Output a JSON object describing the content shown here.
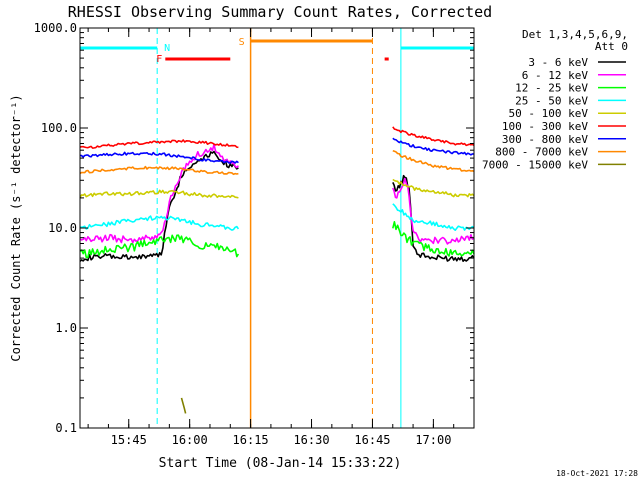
{
  "chart_data": {
    "type": "line",
    "title": "RHESSI Observing Summary Count Rates, Corrected",
    "xlabel": "Start Time (08-Jan-14 15:33:22)",
    "ylabel": "Corrected Count Rate (s⁻¹ detector⁻¹)",
    "y_scale": "log",
    "ylim": [
      0.1,
      1000
    ],
    "xlim": [
      "15:33",
      "17:10"
    ],
    "x_ticks": [
      "15:45",
      "16:00",
      "16:15",
      "16:30",
      "16:45",
      "17:00"
    ],
    "y_ticks": [
      "0.1",
      "1.0",
      "10.0",
      "100.0",
      "1000.0"
    ],
    "legend_header": [
      "Det 1,3,4,5,6,9,",
      "Att 0"
    ],
    "legend_placement": "right",
    "timestamp": "18-Oct-2021 17:28",
    "series": [
      {
        "name": "3 - 6 keV",
        "color": "#000000",
        "segments": [
          [
            [
              "15:33",
              5.0
            ],
            [
              "15:40",
              5.2
            ],
            [
              "15:46",
              5.0
            ],
            [
              "15:50",
              5.3
            ],
            [
              "15:53",
              5.5
            ],
            [
              "15:55",
              16
            ],
            [
              "15:58",
              34
            ],
            [
              "16:02",
              48
            ],
            [
              "16:06",
              58
            ],
            [
              "16:08",
              47
            ],
            [
              "16:10",
              42
            ],
            [
              "16:12",
              40
            ]
          ],
          [
            [
              "16:50",
              27
            ],
            [
              "16:51",
              24
            ],
            [
              "16:52",
              28
            ],
            [
              "16:53",
              33
            ],
            [
              "16:54",
              26
            ],
            [
              "16:55",
              7
            ],
            [
              "16:56",
              5.5
            ],
            [
              "17:00",
              5.0
            ],
            [
              "17:05",
              5.0
            ],
            [
              "17:10",
              5.0
            ]
          ]
        ]
      },
      {
        "name": "6 - 12 keV",
        "color": "#ff00ff",
        "segments": [
          [
            [
              "15:33",
              7.5
            ],
            [
              "15:40",
              8.0
            ],
            [
              "15:46",
              7.5
            ],
            [
              "15:50",
              8.0
            ],
            [
              "15:53",
              8.5
            ],
            [
              "15:55",
              18
            ],
            [
              "15:58",
              36
            ],
            [
              "16:02",
              55
            ],
            [
              "16:06",
              65
            ],
            [
              "16:08",
              50
            ],
            [
              "16:10",
              45
            ],
            [
              "16:12",
              42
            ]
          ],
          [
            [
              "16:50",
              26
            ],
            [
              "16:51",
              20
            ],
            [
              "16:52",
              24
            ],
            [
              "16:53",
              30
            ],
            [
              "16:54",
              22
            ],
            [
              "16:55",
              9
            ],
            [
              "16:56",
              8.0
            ],
            [
              "17:00",
              7.5
            ],
            [
              "17:05",
              7.5
            ],
            [
              "17:10",
              8.0
            ]
          ]
        ]
      },
      {
        "name": "12 - 25 keV",
        "color": "#00ff00",
        "segments": [
          [
            [
              "15:33",
              5.5
            ],
            [
              "15:40",
              6.0
            ],
            [
              "15:46",
              6.5
            ],
            [
              "15:50",
              7.0
            ],
            [
              "15:53",
              7.5
            ],
            [
              "15:58",
              8.0
            ],
            [
              "16:02",
              7.0
            ],
            [
              "16:06",
              6.5
            ],
            [
              "16:10",
              6.0
            ],
            [
              "16:12",
              5.5
            ]
          ],
          [
            [
              "16:50",
              11
            ],
            [
              "16:52",
              9
            ],
            [
              "16:55",
              7.0
            ],
            [
              "17:00",
              6.0
            ],
            [
              "17:05",
              5.5
            ],
            [
              "17:10",
              5.5
            ]
          ]
        ]
      },
      {
        "name": "25 - 50 keV",
        "color": "#00ffff",
        "segments": [
          [
            [
              "15:33",
              10
            ],
            [
              "15:40",
              11
            ],
            [
              "15:46",
              12
            ],
            [
              "15:50",
              12.5
            ],
            [
              "15:53",
              13
            ],
            [
              "15:58",
              12
            ],
            [
              "16:02",
              11
            ],
            [
              "16:06",
              10.5
            ],
            [
              "16:10",
              10
            ],
            [
              "16:12",
              9.8
            ]
          ],
          [
            [
              "16:50",
              17
            ],
            [
              "16:52",
              15
            ],
            [
              "16:55",
              12
            ],
            [
              "17:00",
              11
            ],
            [
              "17:05",
              10
            ],
            [
              "17:10",
              10
            ]
          ]
        ]
      },
      {
        "name": "50 - 100 keV",
        "color": "#cccc00",
        "segments": [
          [
            [
              "15:33",
              21
            ],
            [
              "15:40",
              22
            ],
            [
              "15:46",
              22
            ],
            [
              "15:53",
              23
            ],
            [
              "15:58",
              22.5
            ],
            [
              "16:02",
              21.5
            ],
            [
              "16:06",
              21
            ],
            [
              "16:10",
              20.5
            ],
            [
              "16:12",
              20
            ]
          ],
          [
            [
              "16:50",
              30
            ],
            [
              "16:52",
              28
            ],
            [
              "16:55",
              25
            ],
            [
              "17:00",
              23
            ],
            [
              "17:05",
              21.5
            ],
            [
              "17:10",
              21
            ]
          ]
        ]
      },
      {
        "name": "100 - 300 keV",
        "color": "#ff0000",
        "segments": [
          [
            [
              "15:33",
              63
            ],
            [
              "15:40",
              67
            ],
            [
              "15:46",
              70
            ],
            [
              "15:53",
              73
            ],
            [
              "15:58",
              74
            ],
            [
              "16:02",
              72
            ],
            [
              "16:06",
              70
            ],
            [
              "16:10",
              67
            ],
            [
              "16:12",
              64
            ]
          ],
          [
            [
              "16:50",
              100
            ],
            [
              "16:52",
              93
            ],
            [
              "16:55",
              85
            ],
            [
              "17:00",
              76
            ],
            [
              "17:05",
              70
            ],
            [
              "17:10",
              67
            ]
          ]
        ]
      },
      {
        "name": "300 - 800 keV",
        "color": "#0000ff",
        "segments": [
          [
            [
              "15:33",
              52
            ],
            [
              "15:40",
              54
            ],
            [
              "15:46",
              56
            ],
            [
              "15:53",
              55
            ],
            [
              "15:58",
              52
            ],
            [
              "16:02",
              49
            ],
            [
              "16:06",
              47
            ],
            [
              "16:10",
              46
            ],
            [
              "16:12",
              45
            ]
          ],
          [
            [
              "16:50",
              78
            ],
            [
              "16:52",
              72
            ],
            [
              "16:55",
              66
            ],
            [
              "17:00",
              60
            ],
            [
              "17:05",
              57
            ],
            [
              "17:10",
              55
            ]
          ]
        ]
      },
      {
        "name": "800 - 7000 keV",
        "color": "#ff8800",
        "segments": [
          [
            [
              "15:33",
              36
            ],
            [
              "15:40",
              38
            ],
            [
              "15:46",
              40
            ],
            [
              "15:53",
              40
            ],
            [
              "15:58",
              39
            ],
            [
              "16:02",
              37
            ],
            [
              "16:06",
              36
            ],
            [
              "16:10",
              35
            ],
            [
              "16:12",
              35
            ]
          ],
          [
            [
              "16:50",
              58
            ],
            [
              "16:52",
              53
            ],
            [
              "16:55",
              48
            ],
            [
              "17:00",
              42
            ],
            [
              "17:05",
              39
            ],
            [
              "17:10",
              37
            ]
          ]
        ]
      },
      {
        "name": "7000 - 15000 keV",
        "color": "#808000",
        "segments": [
          [
            [
              "15:58",
              0.2
            ],
            [
              "15:59",
              0.14
            ]
          ]
        ]
      }
    ],
    "annotations": {
      "n_label": "N",
      "f_label": "F",
      "s_label": "S",
      "night_bars": [
        [
          "15:33",
          "15:52"
        ],
        [
          "16:52",
          "17:10"
        ]
      ],
      "flare_bars": [
        [
          "15:54",
          "16:10"
        ],
        [
          "16:48",
          "16:49"
        ]
      ],
      "saa_bar": [
        "16:15",
        "16:45"
      ],
      "cyan_solid_lines": [
        "15:33",
        "16:52"
      ],
      "cyan_dashed_lines": [
        "15:52",
        "17:10"
      ],
      "orange_solid_lines": [
        "16:15"
      ],
      "orange_dashed_lines": [
        "16:45"
      ]
    },
    "bar_colors": {
      "night": "#00ffff",
      "flare": "#ff0000",
      "saa": "#ff8800"
    },
    "grid": false
  }
}
